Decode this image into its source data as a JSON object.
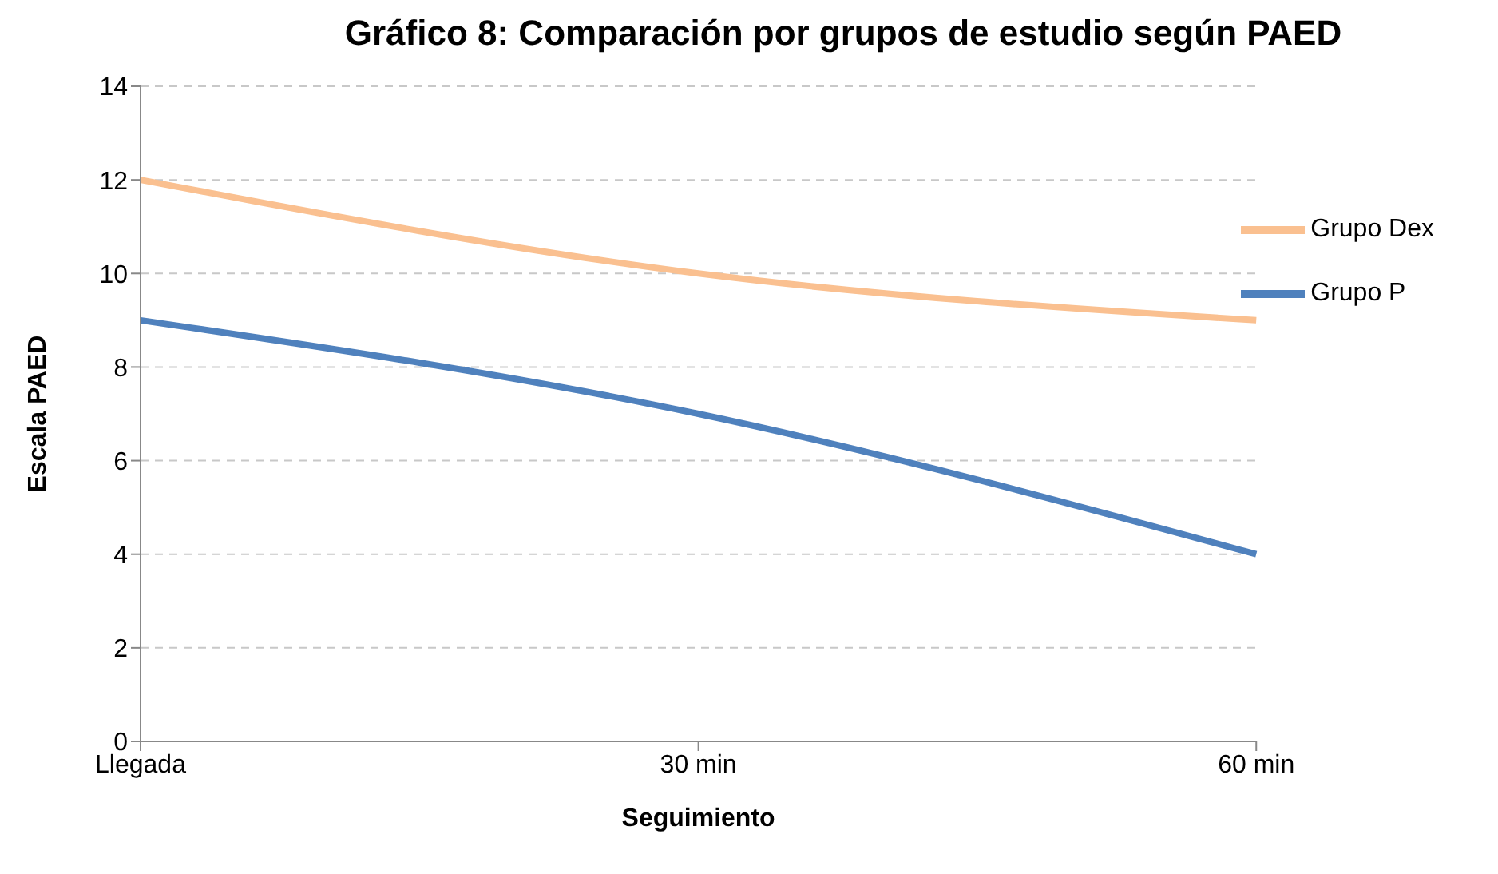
{
  "chart_data": {
    "type": "line",
    "title": "Gráfico 8: Comparación por grupos de estudio según PAED",
    "xlabel": "Seguimiento",
    "ylabel": "Escala PAED",
    "categories": [
      "Llegada",
      "30 min",
      "60 min"
    ],
    "series": [
      {
        "name": "Grupo P",
        "color": "#4f81bd",
        "values": [
          9,
          7,
          4
        ]
      },
      {
        "name": "Grupo Dex",
        "color": "#fac090",
        "values": [
          12,
          10,
          9
        ]
      }
    ],
    "ylim": [
      0,
      14
    ],
    "yticks": [
      0,
      2,
      4,
      6,
      8,
      10,
      12,
      14
    ],
    "grid": "y",
    "legend": "top right"
  }
}
